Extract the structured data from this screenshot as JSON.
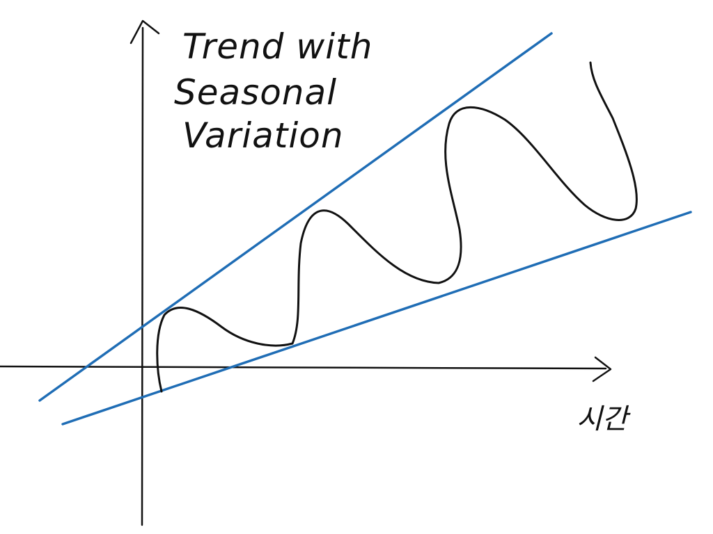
{
  "diagram": {
    "title_lines": [
      "Trend with",
      "Seasonal",
      "Variation"
    ],
    "x_axis_label": "시간",
    "colors": {
      "axes": "#111111",
      "trend_lines": "#1f6db5",
      "seasonal_curve": "#111111",
      "background": "#ffffff"
    }
  }
}
